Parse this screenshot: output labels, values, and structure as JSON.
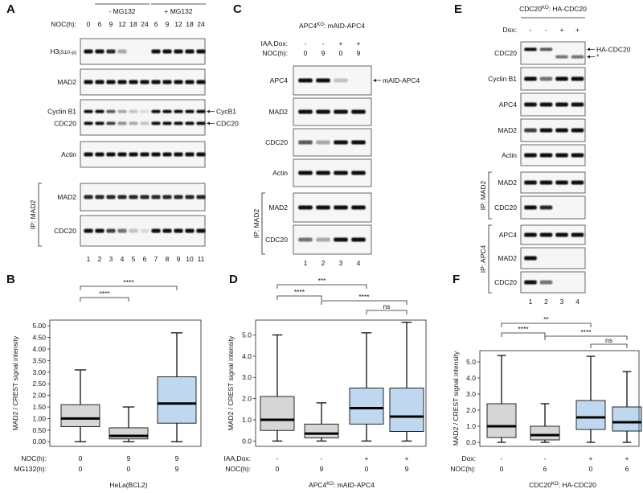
{
  "figure_panels": [
    {
      "label": "A",
      "groups": [
        {
          "text": "- MG132",
          "lanes": [
            1,
            5
          ]
        },
        {
          "text": "+ MG132",
          "lanes": [
            6,
            10
          ]
        }
      ],
      "conditions": [
        {
          "name": "NOC(h):",
          "values": [
            "0",
            "6",
            "9",
            "12",
            "18",
            "24",
            "6",
            "9",
            "12",
            "18",
            "24"
          ]
        }
      ],
      "rows": [
        {
          "names": [
            "H3"
          ],
          "note": "(S10-p)"
        },
        {
          "names": [
            "MAD2"
          ]
        },
        {
          "names": [
            "Cyclin B1",
            "CDC20"
          ],
          "arrows": [
            "CycB1",
            "CDC20"
          ]
        },
        {
          "names": [
            "Actin"
          ]
        },
        {
          "names": [
            "MAD2"
          ]
        },
        {
          "names": [
            "CDC20"
          ]
        }
      ],
      "ip": [
        {
          "text": "IP: MAD2",
          "rows": [
            4,
            5
          ]
        }
      ],
      "lanes": [
        "1",
        "2",
        "3",
        "4",
        "5",
        "6",
        "7",
        "8",
        "9",
        "10",
        "11"
      ]
    },
    {
      "label": "C",
      "title": {
        "main": "APC4",
        "sup": "KO",
        "rest": ": mAID-APC4"
      },
      "conditions": [
        {
          "name": "IAA,Dox:",
          "values": [
            "-",
            "-",
            "+",
            "+"
          ]
        },
        {
          "name": "NOC(h):",
          "values": [
            "0",
            "9",
            "0",
            "9"
          ]
        }
      ],
      "rows": [
        {
          "names": [
            "APC4"
          ],
          "arrows": [
            "mAID-APC4"
          ]
        },
        {
          "names": [
            "MAD2"
          ]
        },
        {
          "names": [
            "CDC20"
          ]
        },
        {
          "names": [
            "Actin"
          ]
        },
        {
          "names": [
            "MAD2"
          ]
        },
        {
          "names": [
            "CDC20"
          ]
        }
      ],
      "ip": [
        {
          "text": "IP: MAD2",
          "rows": [
            4,
            5
          ]
        }
      ],
      "lanes": [
        "1",
        "2",
        "3",
        "4"
      ]
    },
    {
      "label": "E",
      "title": {
        "main": "CDC20",
        "sup": "KO",
        "rest": ": HA-CDC20"
      },
      "conditions": [
        {
          "name": "Dox:",
          "values": [
            "-",
            "-",
            "+",
            "+"
          ]
        }
      ],
      "rows": [
        {
          "names": [
            "CDC20"
          ],
          "arrows": [
            "HA-CDC20",
            "*"
          ]
        },
        {
          "names": [
            "Cyclin B1"
          ]
        },
        {
          "names": [
            "APC4"
          ]
        },
        {
          "names": [
            "MAD2"
          ]
        },
        {
          "names": [
            "Actin"
          ]
        },
        {
          "names": [
            "MAD2"
          ]
        },
        {
          "names": [
            "CDC20"
          ]
        },
        {
          "names": [
            "APC4"
          ]
        },
        {
          "names": [
            "MAD2"
          ]
        },
        {
          "names": [
            "CDC20"
          ]
        }
      ],
      "ip": [
        {
          "text": "IP: MAD2",
          "rows": [
            5,
            6
          ]
        },
        {
          "text": "IP: APC4",
          "rows": [
            7,
            9
          ]
        }
      ],
      "lanes": [
        "1",
        "2",
        "3",
        "4"
      ]
    }
  ],
  "chart_data": [
    {
      "type": "box",
      "label": "B",
      "ylabel": "MAD2 / CREST signal intensity",
      "ylim": [
        -0.2,
        5.25
      ],
      "yticks": [
        {
          "value": 0,
          "label": "0.00"
        },
        {
          "value": 0.5,
          "label": "0.50"
        },
        {
          "value": 1,
          "label": "1.00"
        },
        {
          "value": 1.5,
          "label": "1.50"
        },
        {
          "value": 2,
          "label": "2.00"
        },
        {
          "value": 2.5,
          "label": "2.50"
        },
        {
          "value": 3,
          "label": "3.00"
        },
        {
          "value": 3.5,
          "label": "3.50"
        },
        {
          "value": 4,
          "label": "4.00"
        },
        {
          "value": 4.5,
          "label": "4.50"
        },
        {
          "value": 5,
          "label": "5.00"
        }
      ],
      "x_rows": [
        {
          "name": "NOC(h):",
          "values": [
            "0",
            "9",
            "9"
          ]
        },
        {
          "name": "MG132(h):",
          "values": [
            "0",
            "0",
            "9"
          ]
        }
      ],
      "xlabel": {
        "main": "HeLa(BCL2)"
      },
      "boxes": [
        {
          "whislo": 0,
          "q1": 0.65,
          "med": 1.0,
          "q3": 1.6,
          "whishi": 3.1,
          "color": "#8a8a8a"
        },
        {
          "whislo": 0,
          "q1": 0.12,
          "med": 0.25,
          "q3": 0.6,
          "whishi": 1.5,
          "color": "#8a8a8a"
        },
        {
          "whislo": 0,
          "q1": 0.8,
          "med": 1.65,
          "q3": 2.8,
          "whishi": 4.7,
          "color": "#4a90d0"
        }
      ],
      "significance": [
        {
          "between": [
            0,
            1
          ],
          "label": "****"
        },
        {
          "between": [
            0,
            2
          ],
          "label": "****"
        }
      ]
    },
    {
      "type": "box",
      "label": "D",
      "ylabel": "MAD2 / CREST signal intensity",
      "ylim": [
        -0.25,
        5.7
      ],
      "yticks": [
        {
          "value": 0,
          "label": "0.0"
        },
        {
          "value": 1,
          "label": "1.0"
        },
        {
          "value": 2,
          "label": "2.0"
        },
        {
          "value": 3,
          "label": "3.0"
        },
        {
          "value": 4,
          "label": "4.0"
        },
        {
          "value": 5,
          "label": "5.0"
        }
      ],
      "x_rows": [
        {
          "name": "IAA,Dox:",
          "values": [
            "-",
            "-",
            "+",
            "+"
          ]
        },
        {
          "name": "NOC(h):",
          "values": [
            "0",
            "9",
            "0",
            "9"
          ]
        }
      ],
      "xlabel": {
        "main": "APC4",
        "sup": "KO",
        "rest": ": mAID-APC4"
      },
      "boxes": [
        {
          "whislo": 0,
          "q1": 0.5,
          "med": 1.0,
          "q3": 2.1,
          "whishi": 5.0,
          "color": "#8a8a8a"
        },
        {
          "whislo": 0,
          "q1": 0.15,
          "med": 0.35,
          "q3": 0.8,
          "whishi": 1.8,
          "color": "#8a8a8a"
        },
        {
          "whislo": 0,
          "q1": 0.8,
          "med": 1.55,
          "q3": 2.5,
          "whishi": 5.1,
          "color": "#4a90d0"
        },
        {
          "whislo": 0,
          "q1": 0.45,
          "med": 1.15,
          "q3": 2.5,
          "whishi": 5.6,
          "color": "#4a90d0"
        }
      ],
      "significance": [
        {
          "between": [
            0,
            1
          ],
          "label": "****"
        },
        {
          "between": [
            0,
            2
          ],
          "label": "***"
        },
        {
          "between": [
            1,
            3
          ],
          "label": "****"
        },
        {
          "between": [
            2,
            3
          ],
          "label": "ns"
        }
      ]
    },
    {
      "type": "box",
      "label": "F",
      "ylabel": "MAD2 / CREST signal intensity",
      "ylim": [
        -0.25,
        5.7
      ],
      "yticks": [
        {
          "value": 0,
          "label": "0.0"
        },
        {
          "value": 1,
          "label": "1.0"
        },
        {
          "value": 2,
          "label": "2.0"
        },
        {
          "value": 3,
          "label": "3.0"
        },
        {
          "value": 4,
          "label": "4.0"
        },
        {
          "value": 5,
          "label": "5.0"
        }
      ],
      "x_rows": [
        {
          "name": "Dox:",
          "values": [
            "-",
            "-",
            "+",
            "+"
          ]
        },
        {
          "name": "NOC(h):",
          "values": [
            "0",
            "6",
            "0",
            "6"
          ]
        }
      ],
      "xlabel": {
        "main": "CDC20",
        "sup": "KO",
        "rest": ": HA-CDC20"
      },
      "boxes": [
        {
          "whislo": 0,
          "q1": 0.3,
          "med": 1.0,
          "q3": 2.4,
          "whishi": 5.4,
          "color": "#8a8a8a"
        },
        {
          "whislo": 0,
          "q1": 0.15,
          "med": 0.45,
          "q3": 1.0,
          "whishi": 2.4,
          "color": "#8a8a8a"
        },
        {
          "whislo": 0,
          "q1": 0.8,
          "med": 1.55,
          "q3": 2.6,
          "whishi": 5.35,
          "color": "#4a90d0"
        },
        {
          "whislo": 0,
          "q1": 0.7,
          "med": 1.25,
          "q3": 2.2,
          "whishi": 4.4,
          "color": "#4a90d0"
        }
      ],
      "significance": [
        {
          "between": [
            0,
            1
          ],
          "label": "****"
        },
        {
          "between": [
            0,
            2
          ],
          "label": "**"
        },
        {
          "between": [
            1,
            3
          ],
          "label": "****"
        },
        {
          "between": [
            2,
            3
          ],
          "label": "ns"
        }
      ]
    }
  ]
}
